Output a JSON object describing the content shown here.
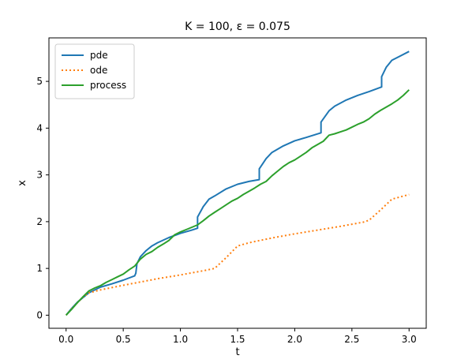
{
  "chart_data": {
    "type": "line",
    "title": "K = 100, ε = 0.075",
    "xlabel": "t",
    "ylabel": "x",
    "xlim": [
      -0.15,
      3.15
    ],
    "ylim": [
      -0.28,
      5.93
    ],
    "xticks": [
      0.0,
      0.5,
      1.0,
      1.5,
      2.0,
      2.5,
      3.0
    ],
    "xtick_labels": [
      "0.0",
      "0.5",
      "1.0",
      "1.5",
      "2.0",
      "2.5",
      "3.0"
    ],
    "yticks": [
      0,
      1,
      2,
      3,
      4,
      5
    ],
    "ytick_labels": [
      "0",
      "1",
      "2",
      "3",
      "4",
      "5"
    ],
    "grid": false,
    "legend_position": "top-left",
    "series": [
      {
        "name": "pde",
        "color": "#1f77b4",
        "style": "solid",
        "x": [
          0.0,
          0.05,
          0.1,
          0.2,
          0.3,
          0.4,
          0.5,
          0.6,
          0.61,
          0.62,
          0.65,
          0.7,
          0.75,
          0.8,
          0.9,
          1.0,
          1.1,
          1.15,
          1.15,
          1.2,
          1.25,
          1.3,
          1.4,
          1.5,
          1.6,
          1.69,
          1.69,
          1.75,
          1.8,
          1.9,
          2.0,
          2.1,
          2.23,
          2.23,
          2.3,
          2.35,
          2.45,
          2.55,
          2.65,
          2.76,
          2.76,
          2.8,
          2.85,
          3.0
        ],
        "y": [
          0.0,
          0.15,
          0.28,
          0.48,
          0.6,
          0.67,
          0.75,
          0.84,
          0.9,
          1.1,
          1.25,
          1.38,
          1.48,
          1.55,
          1.66,
          1.75,
          1.82,
          1.86,
          2.1,
          2.32,
          2.48,
          2.55,
          2.7,
          2.8,
          2.86,
          2.9,
          3.13,
          3.35,
          3.48,
          3.62,
          3.73,
          3.8,
          3.9,
          4.13,
          4.37,
          4.47,
          4.6,
          4.7,
          4.78,
          4.88,
          5.1,
          5.3,
          5.45,
          5.64
        ]
      },
      {
        "name": "ode",
        "color": "#ff7f0e",
        "style": "dotted",
        "x": [
          0.0,
          0.05,
          0.1,
          0.15,
          0.2,
          0.3,
          0.5,
          0.8,
          1.0,
          1.2,
          1.3,
          1.4,
          1.5,
          1.6,
          1.8,
          2.0,
          2.2,
          2.4,
          2.6,
          2.65,
          2.75,
          2.85,
          3.0
        ],
        "y": [
          0.0,
          0.14,
          0.27,
          0.39,
          0.48,
          0.54,
          0.64,
          0.78,
          0.86,
          0.95,
          1.0,
          1.23,
          1.48,
          1.55,
          1.65,
          1.74,
          1.82,
          1.9,
          1.99,
          2.03,
          2.25,
          2.48,
          2.58
        ]
      },
      {
        "name": "process",
        "color": "#2ca02c",
        "style": "solid",
        "x": [
          0.0,
          0.05,
          0.1,
          0.15,
          0.2,
          0.25,
          0.3,
          0.35,
          0.4,
          0.45,
          0.5,
          0.55,
          0.6,
          0.65,
          0.7,
          0.75,
          0.8,
          0.85,
          0.9,
          0.95,
          1.0,
          1.05,
          1.1,
          1.15,
          1.2,
          1.25,
          1.3,
          1.35,
          1.4,
          1.45,
          1.5,
          1.55,
          1.6,
          1.65,
          1.7,
          1.75,
          1.8,
          1.85,
          1.9,
          1.95,
          2.0,
          2.05,
          2.1,
          2.15,
          2.2,
          2.25,
          2.3,
          2.35,
          2.4,
          2.45,
          2.5,
          2.55,
          2.6,
          2.65,
          2.7,
          2.75,
          2.8,
          2.85,
          2.9,
          2.95,
          3.0
        ],
        "y": [
          0.0,
          0.13,
          0.27,
          0.4,
          0.52,
          0.58,
          0.63,
          0.7,
          0.76,
          0.82,
          0.88,
          0.97,
          1.05,
          1.2,
          1.3,
          1.36,
          1.45,
          1.52,
          1.6,
          1.72,
          1.78,
          1.83,
          1.88,
          1.93,
          2.02,
          2.12,
          2.2,
          2.28,
          2.36,
          2.44,
          2.5,
          2.58,
          2.65,
          2.72,
          2.8,
          2.86,
          2.98,
          3.08,
          3.18,
          3.26,
          3.32,
          3.4,
          3.48,
          3.58,
          3.65,
          3.72,
          3.85,
          3.88,
          3.92,
          3.96,
          4.02,
          4.08,
          4.13,
          4.2,
          4.3,
          4.38,
          4.45,
          4.52,
          4.6,
          4.7,
          4.82
        ]
      }
    ]
  }
}
